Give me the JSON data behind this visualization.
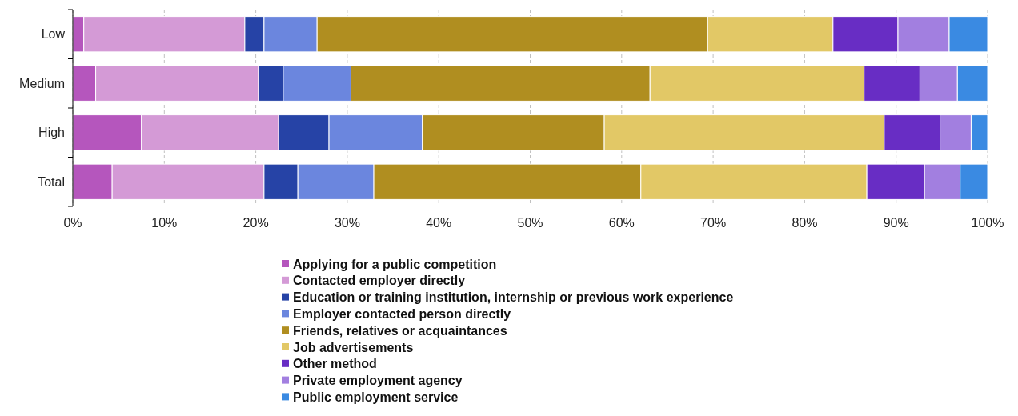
{
  "chart_data": {
    "type": "bar",
    "orientation": "horizontal",
    "stacked": true,
    "categories": [
      "Low",
      "Medium",
      "High",
      "Total"
    ],
    "series": [
      {
        "name": "Applying for a public competition",
        "color": "#b556bd",
        "values": [
          1.2,
          2.5,
          7.5,
          4.3
        ]
      },
      {
        "name": "Contacted employer directly",
        "color": "#d49ad6",
        "values": [
          17.6,
          17.8,
          15.0,
          16.6
        ]
      },
      {
        "name": "Education or training institution, internship or previous work experience",
        "color": "#2643a6",
        "values": [
          2.1,
          2.7,
          5.5,
          3.7
        ]
      },
      {
        "name": "Employer contacted person directly",
        "color": "#6b86de",
        "values": [
          5.8,
          7.4,
          10.2,
          8.3
        ]
      },
      {
        "name": "Friends, relatives or acquaintances",
        "color": "#b08e20",
        "values": [
          42.7,
          32.7,
          19.9,
          29.2
        ]
      },
      {
        "name": "Job advertisements",
        "color": "#e2c866",
        "values": [
          13.7,
          23.4,
          30.6,
          24.7
        ]
      },
      {
        "name": "Other method",
        "color": "#682dc4",
        "values": [
          7.1,
          6.1,
          6.1,
          6.3
        ]
      },
      {
        "name": "Private employment agency",
        "color": "#a27fe0",
        "values": [
          5.6,
          4.1,
          3.4,
          3.9
        ]
      },
      {
        "name": "Public employment service",
        "color": "#3a8ae2",
        "values": [
          4.2,
          3.3,
          1.8,
          3.0
        ]
      }
    ],
    "xlim": [
      0,
      100
    ],
    "xticks": [
      {
        "value": 0,
        "label": "0%"
      },
      {
        "value": 10,
        "label": "10%"
      },
      {
        "value": 20,
        "label": "20%"
      },
      {
        "value": 30,
        "label": "30%"
      },
      {
        "value": 40,
        "label": "40%"
      },
      {
        "value": 50,
        "label": "50%"
      },
      {
        "value": 60,
        "label": "60%"
      },
      {
        "value": 70,
        "label": "70%"
      },
      {
        "value": 80,
        "label": "80%"
      },
      {
        "value": 90,
        "label": "90%"
      },
      {
        "value": 100,
        "label": "100%"
      }
    ],
    "grid": "x",
    "legend": "bottom"
  }
}
